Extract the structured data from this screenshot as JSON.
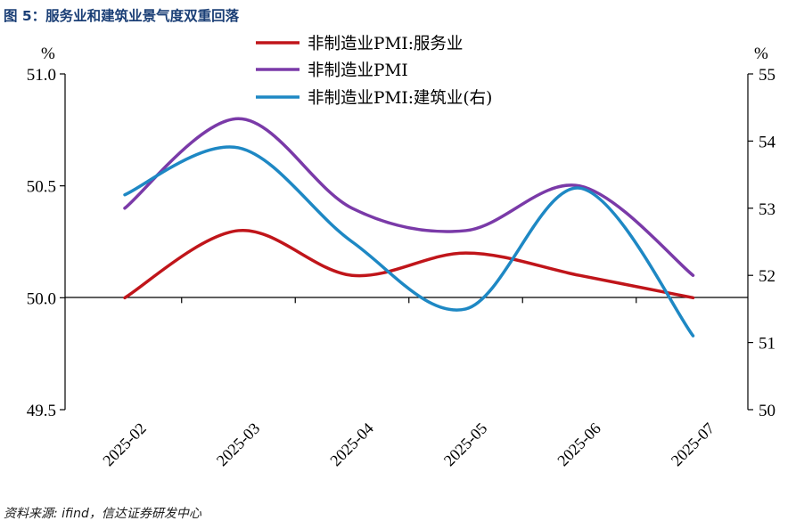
{
  "figure_title": "图 5：服务业和建筑业景气度双重回落",
  "source": "资料来源: ifind，信达证券研发中心",
  "chart_data": {
    "type": "line",
    "categories": [
      "2025-02",
      "2025-03",
      "2025-04",
      "2025-05",
      "2025-06",
      "2025-07"
    ],
    "left_axis": {
      "unit": "%",
      "min": 49.5,
      "max": 51.0,
      "ticks": [
        "51.0",
        "50.5",
        "50.0",
        "49.5"
      ],
      "tick_values": [
        51.0,
        50.5,
        50.0,
        49.5
      ]
    },
    "right_axis": {
      "unit": "%",
      "min": 50,
      "max": 55,
      "ticks": [
        "55",
        "54",
        "53",
        "52",
        "51",
        "50"
      ],
      "tick_values": [
        55,
        54,
        53,
        52,
        51,
        50
      ]
    },
    "series": [
      {
        "name": "非制造业PMI:服务业",
        "axis": "left",
        "color": "#c0151a",
        "values": [
          50.0,
          50.3,
          50.1,
          50.2,
          50.1,
          50.0
        ]
      },
      {
        "name": "非制造业PMI",
        "axis": "left",
        "color": "#7a3aa8",
        "values": [
          50.4,
          50.8,
          50.4,
          50.3,
          50.5,
          50.1
        ]
      },
      {
        "name": "非制造业PMI:建筑业(右)",
        "axis": "right",
        "color": "#1e88c4",
        "values": [
          53.2,
          53.9,
          52.5,
          51.5,
          53.3,
          51.1
        ]
      }
    ],
    "legend_position": "top-center",
    "grid": false
  }
}
